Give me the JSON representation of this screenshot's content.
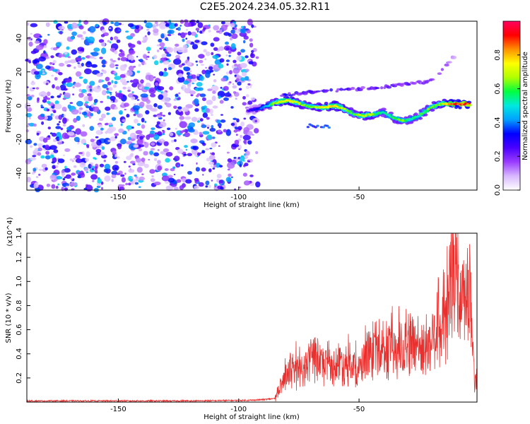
{
  "title": "C2E5.2024.234.05.32.R11",
  "chart_data": [
    {
      "type": "heatmap",
      "xlabel": "Height of straight line (km)",
      "ylabel": "Frequency (Hz)",
      "xlim": [
        -188,
        -1
      ],
      "ylim": [
        -50,
        50
      ],
      "xticks": [
        -150,
        -100,
        -50
      ],
      "xtick_labels": [
        "-150",
        "-100",
        "-50"
      ],
      "yticks": [
        -40,
        -20,
        0,
        20,
        40
      ],
      "ytick_labels": [
        "-40",
        "-20",
        "0",
        "20",
        "40"
      ],
      "colorbar": {
        "label": "Normalized spectral amplitude",
        "range": [
          0,
          1
        ],
        "ticks": [
          0.0,
          0.2,
          0.4,
          0.6,
          0.8
        ],
        "tick_labels": [
          "0.0",
          "0.2",
          "0.4",
          "0.6",
          "0.8"
        ],
        "colors": [
          "#ffffff",
          "#d8b8ff",
          "#9a3cff",
          "#4a00ff",
          "#0000ff",
          "#00a0ff",
          "#00e8e0",
          "#00ff40",
          "#b0ff00",
          "#ffff00",
          "#ff9000",
          "#ff0000",
          "#ff0060"
        ]
      },
      "noise_region_x": [
        -188,
        -91
      ],
      "signal_track": {
        "x": [
          -96,
          -92,
          -88,
          -84,
          -80,
          -76,
          -72,
          -68,
          -64,
          -60,
          -56,
          -52,
          -48,
          -44,
          -40,
          -36,
          -32,
          -28,
          -24,
          -20,
          -16,
          -12,
          -8,
          -4
        ],
        "y": [
          -3,
          -2,
          0,
          2,
          3,
          2,
          0,
          -1,
          -1,
          0,
          -2,
          -5,
          -6,
          -5,
          -4,
          -7,
          -9,
          -8,
          -5,
          -1,
          1,
          1,
          1,
          1
        ],
        "amp": [
          0.25,
          0.35,
          0.5,
          0.72,
          0.8,
          0.7,
          0.65,
          0.7,
          0.75,
          0.78,
          0.7,
          0.6,
          0.72,
          0.65,
          0.55,
          0.6,
          0.65,
          0.55,
          0.6,
          0.65,
          0.7,
          0.85,
          0.92,
          0.95
        ]
      },
      "harmonic_track": {
        "x": [
          -82,
          -70,
          -60,
          -50,
          -40,
          -30,
          -22,
          -18,
          -10
        ],
        "y": [
          6,
          8,
          9,
          10,
          11,
          13,
          14,
          17,
          30
        ],
        "amp": [
          0.3,
          0.3,
          0.28,
          0.26,
          0.24,
          0.22,
          0.2,
          0.2,
          0.15
        ]
      }
    },
    {
      "type": "line",
      "xlabel": "Height of straight line (km)",
      "ylabel": "SNR (10 * v/v)",
      "exponent_label": "(x10^4)",
      "xlim": [
        -188,
        -1
      ],
      "ylim": [
        0,
        1.4
      ],
      "xticks": [
        -150,
        -100,
        -50
      ],
      "xtick_labels": [
        "-150",
        "-100",
        "-50"
      ],
      "yticks": [
        0.2,
        0.4,
        0.6,
        0.8,
        1.0,
        1.2,
        1.4
      ],
      "ytick_labels": [
        "0.2",
        "0.4",
        "0.6",
        "0.8",
        "1.0",
        "1.2",
        "1.4"
      ],
      "color": "#e8312f",
      "x": [
        -188,
        -150,
        -120,
        -95,
        -90,
        -85,
        -82,
        -78,
        -74,
        -70,
        -66,
        -62,
        -58,
        -54,
        -50,
        -46,
        -42,
        -38,
        -34,
        -30,
        -26,
        -22,
        -18,
        -14,
        -11,
        -8,
        -6,
        -4,
        -2,
        -1
      ],
      "y": [
        0.01,
        0.01,
        0.01,
        0.015,
        0.02,
        0.03,
        0.18,
        0.35,
        0.3,
        0.42,
        0.38,
        0.32,
        0.4,
        0.36,
        0.3,
        0.5,
        0.45,
        0.52,
        0.48,
        0.62,
        0.55,
        0.5,
        0.68,
        0.72,
        1.32,
        0.95,
        1.0,
        1.05,
        0.2,
        0.3
      ]
    }
  ]
}
